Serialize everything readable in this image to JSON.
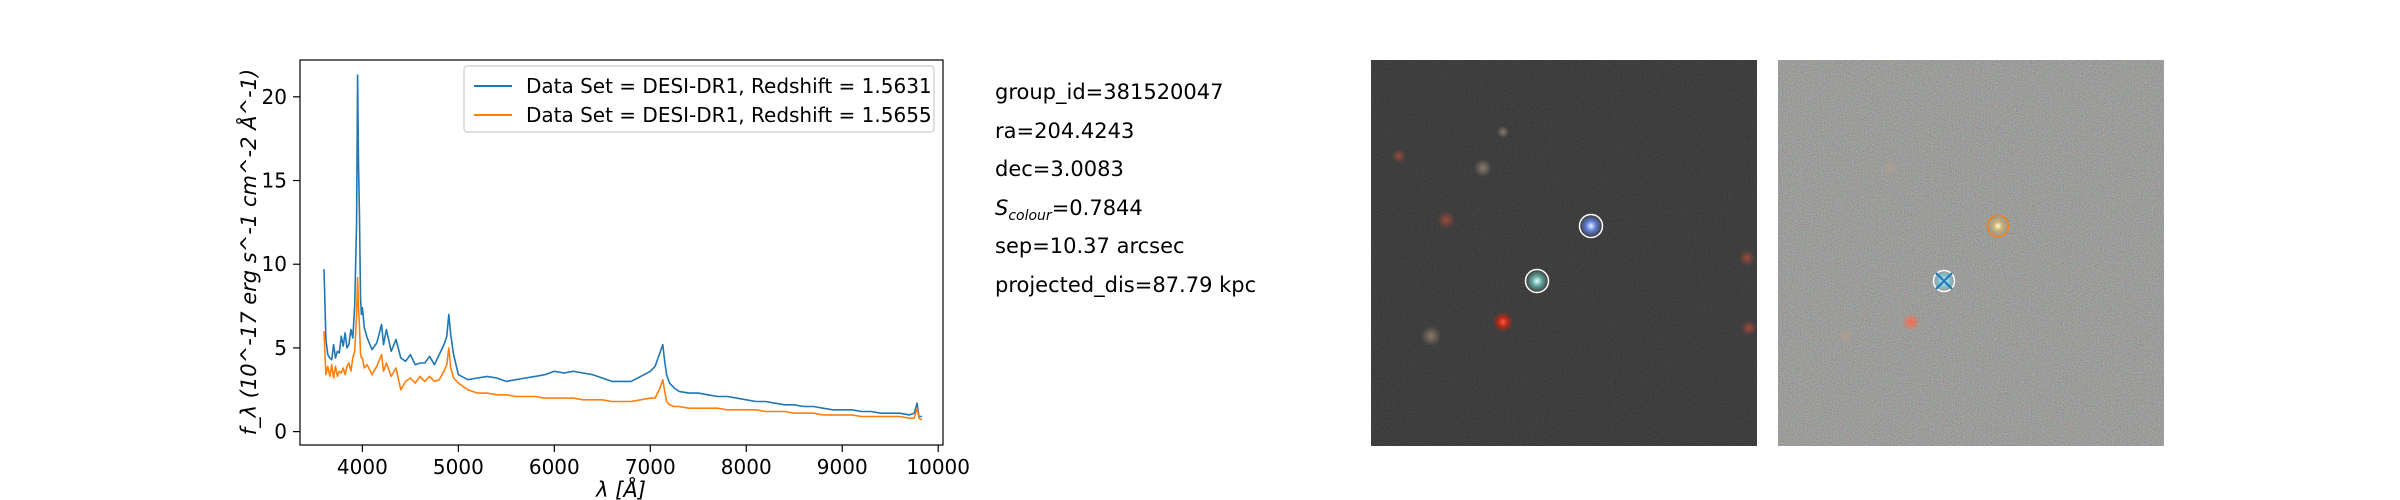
{
  "chart_data": {
    "type": "line",
    "title": "",
    "xlabel": "λ [Å]",
    "ylabel": "f_λ (10^-17 erg s^-1 cm^-2 Å^-1)",
    "xlim": [
      3350,
      10050
    ],
    "ylim": [
      -0.8,
      22.2
    ],
    "xticks": [
      4000,
      5000,
      6000,
      7000,
      8000,
      9000,
      10000
    ],
    "yticks": [
      0,
      5,
      10,
      15,
      20
    ],
    "grid": false,
    "legend_position": "top-right",
    "series": [
      {
        "name": "Data Set = DESI-DR1, Redshift = 1.5631",
        "color": "#1f77b4",
        "x": [
          3600,
          3620,
          3640,
          3660,
          3680,
          3700,
          3720,
          3740,
          3760,
          3780,
          3800,
          3820,
          3840,
          3860,
          3880,
          3900,
          3920,
          3940,
          3950,
          3960,
          3970,
          3980,
          3990,
          4000,
          4020,
          4050,
          4100,
          4150,
          4200,
          4220,
          4250,
          4300,
          4350,
          4400,
          4450,
          4500,
          4550,
          4600,
          4650,
          4700,
          4750,
          4800,
          4850,
          4880,
          4900,
          4920,
          4950,
          5000,
          5100,
          5200,
          5300,
          5400,
          5500,
          5600,
          5700,
          5800,
          5900,
          6000,
          6100,
          6200,
          6300,
          6400,
          6500,
          6600,
          6700,
          6800,
          6900,
          7000,
          7050,
          7100,
          7130,
          7150,
          7170,
          7200,
          7250,
          7300,
          7400,
          7500,
          7600,
          7700,
          7800,
          7900,
          8000,
          8100,
          8200,
          8300,
          8400,
          8500,
          8600,
          8700,
          8800,
          8900,
          9000,
          9100,
          9200,
          9300,
          9400,
          9500,
          9600,
          9700,
          9750,
          9780,
          9800,
          9830
        ],
        "values": [
          9.7,
          5.5,
          4.6,
          4.4,
          4.3,
          5.2,
          4.4,
          4.8,
          4.7,
          5.7,
          5.1,
          5.9,
          5.0,
          5.2,
          6.1,
          5.6,
          7.5,
          12.5,
          21.3,
          16.0,
          12.8,
          8.0,
          7.0,
          7.4,
          6.2,
          5.6,
          4.9,
          5.3,
          6.4,
          5.2,
          6.1,
          4.8,
          5.5,
          4.4,
          4.2,
          4.6,
          4.0,
          4.1,
          4.1,
          4.5,
          4.0,
          4.6,
          5.2,
          5.7,
          7.0,
          5.8,
          4.6,
          3.4,
          3.1,
          3.2,
          3.3,
          3.2,
          3.0,
          3.1,
          3.2,
          3.3,
          3.4,
          3.6,
          3.5,
          3.6,
          3.5,
          3.4,
          3.2,
          3.0,
          3.0,
          3.0,
          3.3,
          3.6,
          3.9,
          4.7,
          5.2,
          4.2,
          3.4,
          2.9,
          2.6,
          2.4,
          2.3,
          2.3,
          2.2,
          2.1,
          2.1,
          2.0,
          1.9,
          1.8,
          1.8,
          1.7,
          1.6,
          1.6,
          1.5,
          1.5,
          1.4,
          1.3,
          1.3,
          1.3,
          1.2,
          1.2,
          1.1,
          1.1,
          1.1,
          1.0,
          1.1,
          1.7,
          0.9,
          0.9
        ]
      },
      {
        "name": "Data Set = DESI-DR1, Redshift = 1.5655",
        "color": "#ff7f0e",
        "x": [
          3600,
          3620,
          3640,
          3660,
          3680,
          3700,
          3720,
          3740,
          3760,
          3780,
          3800,
          3820,
          3840,
          3860,
          3880,
          3900,
          3920,
          3940,
          3950,
          3960,
          3970,
          3980,
          3990,
          4000,
          4020,
          4050,
          4100,
          4150,
          4200,
          4220,
          4250,
          4300,
          4350,
          4400,
          4450,
          4500,
          4550,
          4600,
          4650,
          4700,
          4750,
          4800,
          4850,
          4880,
          4900,
          4920,
          4950,
          5000,
          5100,
          5200,
          5300,
          5400,
          5500,
          5600,
          5700,
          5800,
          5900,
          6000,
          6100,
          6200,
          6300,
          6400,
          6500,
          6600,
          6700,
          6800,
          6900,
          7000,
          7050,
          7100,
          7130,
          7150,
          7170,
          7200,
          7250,
          7300,
          7400,
          7500,
          7600,
          7700,
          7800,
          7900,
          8000,
          8100,
          8200,
          8300,
          8400,
          8500,
          8600,
          8700,
          8800,
          8900,
          9000,
          9100,
          9200,
          9300,
          9400,
          9500,
          9600,
          9700,
          9750,
          9780,
          9800,
          9830
        ],
        "values": [
          6.0,
          3.4,
          3.9,
          3.3,
          4.0,
          3.2,
          3.9,
          3.3,
          3.6,
          3.5,
          3.8,
          3.4,
          3.9,
          4.1,
          3.6,
          4.4,
          4.8,
          7.0,
          9.2,
          7.5,
          6.2,
          4.7,
          4.4,
          4.4,
          3.8,
          4.0,
          3.4,
          3.9,
          4.6,
          3.6,
          4.1,
          3.3,
          3.8,
          2.5,
          3.0,
          3.2,
          2.9,
          3.3,
          3.0,
          3.3,
          3.0,
          3.1,
          3.6,
          4.0,
          5.0,
          3.8,
          3.2,
          2.9,
          2.5,
          2.3,
          2.3,
          2.2,
          2.2,
          2.1,
          2.1,
          2.1,
          2.0,
          2.0,
          2.0,
          2.0,
          1.9,
          1.9,
          1.9,
          1.8,
          1.8,
          1.8,
          1.9,
          2.0,
          2.0,
          2.6,
          3.1,
          2.4,
          1.8,
          1.6,
          1.5,
          1.5,
          1.4,
          1.4,
          1.4,
          1.4,
          1.3,
          1.3,
          1.3,
          1.3,
          1.2,
          1.2,
          1.2,
          1.1,
          1.1,
          1.1,
          1.0,
          1.0,
          1.0,
          1.0,
          0.9,
          0.9,
          0.9,
          0.9,
          0.9,
          0.8,
          0.8,
          1.4,
          0.8,
          0.7
        ]
      }
    ]
  },
  "info": {
    "group_id": "group_id=381520047",
    "ra": "ra=204.4243",
    "dec": "dec=3.0083",
    "s_colour_label": "S",
    "s_colour_sub": "colour",
    "s_colour_value": "=0.7844",
    "sep": "sep=10.37 arcsec",
    "projected_dis": "projected_dis=87.79 kpc"
  },
  "colors": {
    "axis": "#000000",
    "cutout_dark_bg": "#1a1a1a",
    "cutout_noisy_bg": "#5a5f55",
    "marker_circle": "#ffffff",
    "marker_cross": "#1f77b4",
    "marker_orange": "#ff7f0e"
  }
}
